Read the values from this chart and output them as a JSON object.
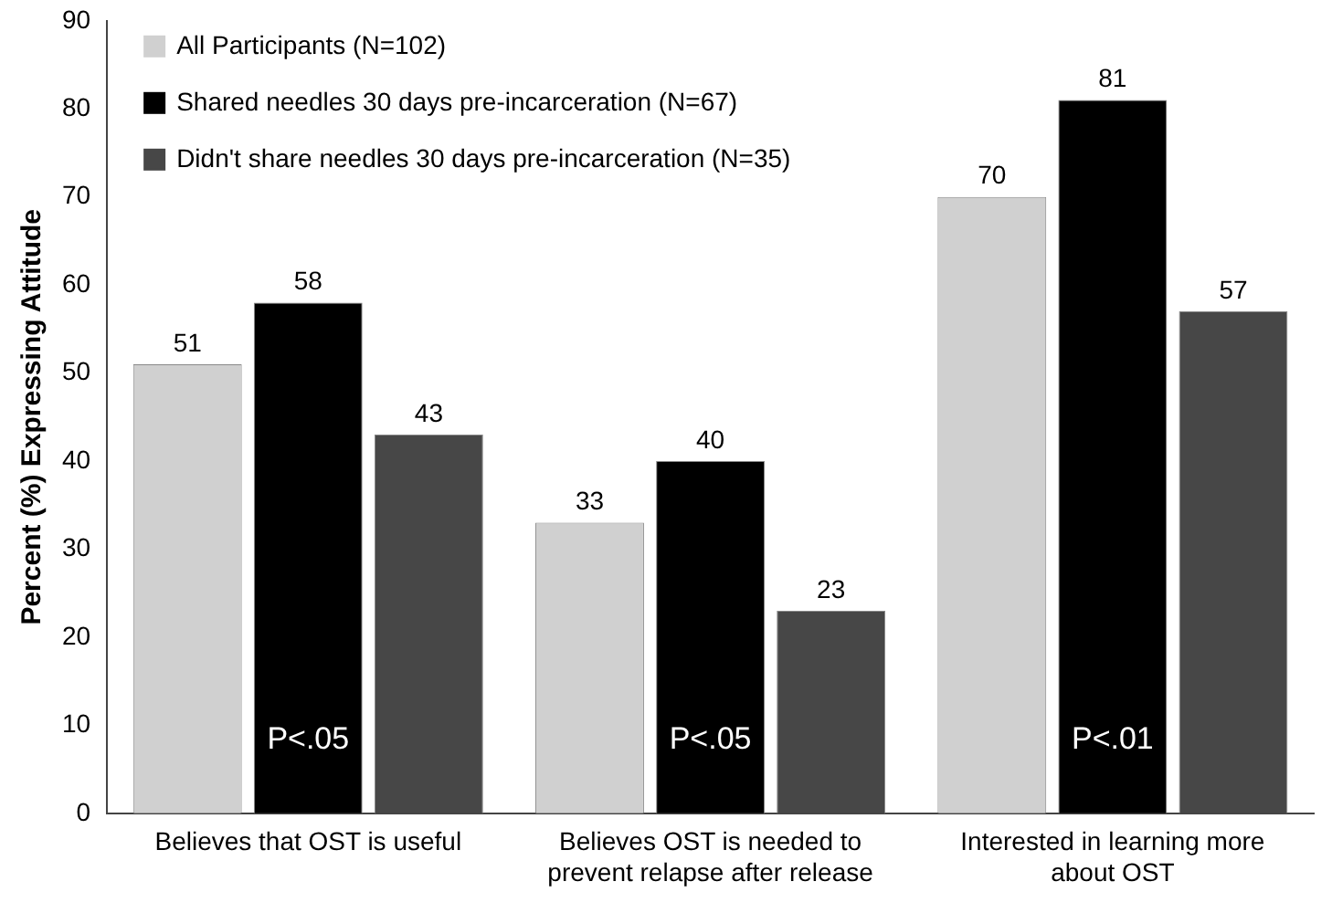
{
  "chart_data": {
    "type": "bar",
    "ylabel": "Percent (%) Expressing Attitude",
    "categories": [
      "Believes that OST is useful",
      "Believes OST is needed to prevent relapse after release",
      "Interested in learning more about OST"
    ],
    "series": [
      {
        "name": "All Participants (N=102)",
        "color": "#d0d0d0",
        "values": [
          51,
          33,
          70
        ]
      },
      {
        "name": "Shared needles 30 days pre-incarceration (N=67)",
        "color": "#000000",
        "values": [
          58,
          40,
          81
        ]
      },
      {
        "name": "Didn't share needles 30 days pre-incarceration (N=35)",
        "color": "#474747",
        "values": [
          43,
          23,
          57
        ]
      }
    ],
    "ylim": [
      0,
      90
    ],
    "yticks": [
      0,
      10,
      20,
      30,
      40,
      50,
      60,
      70,
      80,
      90
    ],
    "grid": false,
    "legend": "top left",
    "data_labels": true,
    "annotations": [
      "P<.05",
      "P<.05",
      "P<.01"
    ]
  }
}
